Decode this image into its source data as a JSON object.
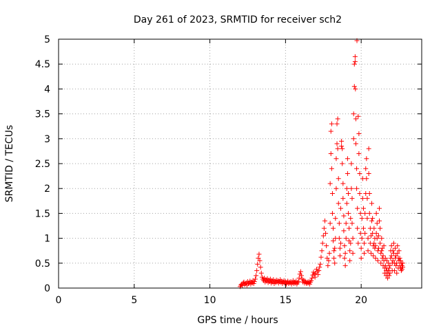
{
  "chart_data": {
    "type": "scatter",
    "title": "Day 261 of 2023, SRMTID for receiver sch2",
    "xlabel": "GPS time / hours",
    "ylabel": "SRMTID / TECUs",
    "xlim": [
      0,
      24
    ],
    "ylim": [
      0,
      5
    ],
    "xticks": [
      0,
      5,
      10,
      15,
      20
    ],
    "xtick_labels": [
      "0",
      "5",
      "10",
      "15",
      "20"
    ],
    "yticks": [
      0,
      0.5,
      1,
      1.5,
      2,
      2.5,
      3,
      3.5,
      4,
      4.5,
      5
    ],
    "ytick_labels": [
      "0",
      "0.5",
      "1",
      "1.5",
      "2",
      "2.5",
      "3",
      "3.5",
      "4",
      "4.5",
      "5"
    ],
    "grid": true,
    "marker": "+",
    "color": "#ff0000",
    "series": [
      {
        "name": "sch2",
        "points": [
          [
            12.0,
            0.03
          ],
          [
            12.05,
            0.06
          ],
          [
            12.1,
            0.08
          ],
          [
            12.15,
            0.05
          ],
          [
            12.2,
            0.1
          ],
          [
            12.25,
            0.12
          ],
          [
            12.3,
            0.07
          ],
          [
            12.35,
            0.09
          ],
          [
            12.4,
            0.11
          ],
          [
            12.45,
            0.06
          ],
          [
            12.5,
            0.13
          ],
          [
            12.55,
            0.09
          ],
          [
            12.6,
            0.1
          ],
          [
            12.65,
            0.14
          ],
          [
            12.7,
            0.08
          ],
          [
            12.75,
            0.12
          ],
          [
            12.8,
            0.1
          ],
          [
            12.85,
            0.15
          ],
          [
            12.9,
            0.09
          ],
          [
            12.95,
            0.13
          ],
          [
            13.0,
            0.18
          ],
          [
            13.05,
            0.25
          ],
          [
            13.1,
            0.35
          ],
          [
            13.15,
            0.48
          ],
          [
            13.2,
            0.6
          ],
          [
            13.25,
            0.68
          ],
          [
            13.3,
            0.55
          ],
          [
            13.35,
            0.42
          ],
          [
            13.4,
            0.3
          ],
          [
            13.45,
            0.22
          ],
          [
            13.5,
            0.18
          ],
          [
            13.55,
            0.15
          ],
          [
            13.6,
            0.2
          ],
          [
            13.65,
            0.12
          ],
          [
            13.7,
            0.17
          ],
          [
            13.75,
            0.14
          ],
          [
            13.8,
            0.19
          ],
          [
            13.85,
            0.11
          ],
          [
            13.9,
            0.16
          ],
          [
            13.95,
            0.13
          ],
          [
            14.0,
            0.18
          ],
          [
            14.05,
            0.1
          ],
          [
            14.1,
            0.15
          ],
          [
            14.15,
            0.12
          ],
          [
            14.2,
            0.17
          ],
          [
            14.25,
            0.09
          ],
          [
            14.3,
            0.14
          ],
          [
            14.35,
            0.11
          ],
          [
            14.4,
            0.16
          ],
          [
            14.45,
            0.12
          ],
          [
            14.5,
            0.15
          ],
          [
            14.55,
            0.1
          ],
          [
            14.6,
            0.13
          ],
          [
            14.65,
            0.17
          ],
          [
            14.7,
            0.11
          ],
          [
            14.75,
            0.14
          ],
          [
            14.8,
            0.09
          ],
          [
            14.85,
            0.12
          ],
          [
            14.9,
            0.15
          ],
          [
            14.95,
            0.1
          ],
          [
            15.0,
            0.13
          ],
          [
            15.05,
            0.08
          ],
          [
            15.1,
            0.11
          ],
          [
            15.15,
            0.14
          ],
          [
            15.2,
            0.09
          ],
          [
            15.25,
            0.12
          ],
          [
            15.3,
            0.1
          ],
          [
            15.35,
            0.13
          ],
          [
            15.4,
            0.08
          ],
          [
            15.45,
            0.11
          ],
          [
            15.5,
            0.15
          ],
          [
            15.55,
            0.09
          ],
          [
            15.6,
            0.12
          ],
          [
            15.65,
            0.1
          ],
          [
            15.7,
            0.14
          ],
          [
            15.75,
            0.08
          ],
          [
            15.8,
            0.11
          ],
          [
            15.85,
            0.13
          ],
          [
            15.9,
            0.2
          ],
          [
            15.95,
            0.28
          ],
          [
            16.0,
            0.33
          ],
          [
            16.05,
            0.25
          ],
          [
            16.1,
            0.18
          ],
          [
            16.15,
            0.12
          ],
          [
            16.2,
            0.16
          ],
          [
            16.25,
            0.1
          ],
          [
            16.3,
            0.14
          ],
          [
            16.35,
            0.11
          ],
          [
            16.4,
            0.09
          ],
          [
            16.45,
            0.12
          ],
          [
            16.5,
            0.1
          ],
          [
            16.55,
            0.13
          ],
          [
            16.6,
            0.08
          ],
          [
            16.65,
            0.12
          ],
          [
            16.7,
            0.15
          ],
          [
            16.75,
            0.2
          ],
          [
            16.8,
            0.26
          ],
          [
            16.85,
            0.32
          ],
          [
            16.9,
            0.28
          ],
          [
            16.95,
            0.22
          ],
          [
            17.0,
            0.3
          ],
          [
            17.05,
            0.38
          ],
          [
            17.1,
            0.34
          ],
          [
            17.15,
            0.27
          ],
          [
            17.2,
            0.35
          ],
          [
            17.25,
            0.42
          ],
          [
            17.3,
            0.48
          ],
          [
            17.35,
            0.62
          ],
          [
            17.4,
            0.75
          ],
          [
            17.45,
            0.9
          ],
          [
            17.5,
            1.05
          ],
          [
            17.55,
            1.2
          ],
          [
            17.6,
            1.35
          ],
          [
            17.65,
            1.1
          ],
          [
            17.7,
            0.85
          ],
          [
            17.75,
            0.6
          ],
          [
            17.8,
            0.45
          ],
          [
            17.85,
            0.55
          ],
          [
            17.9,
            0.7
          ],
          [
            17.95,
            1.3
          ],
          [
            17.95,
            2.1
          ],
          [
            18.0,
            2.7
          ],
          [
            18.0,
            3.15
          ],
          [
            18.05,
            3.3
          ],
          [
            18.05,
            2.4
          ],
          [
            18.1,
            1.9
          ],
          [
            18.1,
            1.5
          ],
          [
            18.15,
            1.2
          ],
          [
            18.15,
            0.95
          ],
          [
            18.2,
            0.75
          ],
          [
            18.2,
            0.6
          ],
          [
            18.25,
            0.5
          ],
          [
            18.25,
            0.8
          ],
          [
            18.3,
            1.0
          ],
          [
            18.3,
            1.4
          ],
          [
            18.35,
            2.0
          ],
          [
            18.35,
            2.6
          ],
          [
            18.4,
            2.9
          ],
          [
            18.4,
            3.3
          ],
          [
            18.45,
            3.4
          ],
          [
            18.45,
            2.8
          ],
          [
            18.5,
            2.2
          ],
          [
            18.5,
            1.7
          ],
          [
            18.55,
            1.3
          ],
          [
            18.55,
            1.0
          ],
          [
            18.6,
            0.8
          ],
          [
            18.6,
            0.65
          ],
          [
            18.65,
            0.9
          ],
          [
            18.65,
            1.6
          ],
          [
            18.7,
            2.85
          ],
          [
            18.7,
            2.95
          ],
          [
            18.75,
            2.8
          ],
          [
            18.75,
            2.5
          ],
          [
            18.8,
            2.1
          ],
          [
            18.8,
            1.8
          ],
          [
            18.85,
            1.45
          ],
          [
            18.85,
            1.15
          ],
          [
            18.9,
            0.85
          ],
          [
            18.9,
            0.6
          ],
          [
            18.95,
            0.45
          ],
          [
            18.95,
            0.7
          ],
          [
            19.0,
            1.0
          ],
          [
            19.0,
            1.3
          ],
          [
            19.05,
            1.7
          ],
          [
            19.05,
            2.0
          ],
          [
            19.1,
            2.3
          ],
          [
            19.1,
            2.6
          ],
          [
            19.15,
            1.9
          ],
          [
            19.15,
            1.5
          ],
          [
            19.2,
            1.2
          ],
          [
            19.2,
            0.95
          ],
          [
            19.25,
            0.75
          ],
          [
            19.25,
            0.55
          ],
          [
            19.3,
            0.9
          ],
          [
            19.3,
            1.4
          ],
          [
            19.35,
            2.0
          ],
          [
            19.35,
            2.5
          ],
          [
            19.4,
            1.8
          ],
          [
            19.4,
            1.3
          ],
          [
            19.45,
            1.0
          ],
          [
            19.45,
            0.7
          ],
          [
            19.5,
            3.0
          ],
          [
            19.5,
            3.5
          ],
          [
            19.55,
            4.05
          ],
          [
            19.55,
            4.5
          ],
          [
            19.6,
            4.65
          ],
          [
            19.6,
            4.55
          ],
          [
            19.62,
            4.0
          ],
          [
            19.65,
            3.4
          ],
          [
            19.65,
            2.9
          ],
          [
            19.7,
            2.4
          ],
          [
            19.7,
            2.0
          ],
          [
            19.72,
            4.97
          ],
          [
            19.75,
            1.6
          ],
          [
            19.75,
            1.2
          ],
          [
            19.8,
            0.9
          ],
          [
            19.8,
            3.45
          ],
          [
            19.85,
            3.1
          ],
          [
            19.85,
            2.7
          ],
          [
            19.9,
            2.3
          ],
          [
            19.9,
            1.9
          ],
          [
            19.95,
            1.5
          ],
          [
            19.95,
            1.1
          ],
          [
            20.0,
            0.8
          ],
          [
            20.0,
            0.6
          ],
          [
            20.05,
            1.0
          ],
          [
            20.05,
            1.4
          ],
          [
            20.1,
            1.8
          ],
          [
            20.1,
            2.2
          ],
          [
            20.15,
            1.6
          ],
          [
            20.15,
            1.2
          ],
          [
            20.2,
            0.9
          ],
          [
            20.2,
            0.7
          ],
          [
            20.25,
            1.1
          ],
          [
            20.25,
            1.5
          ],
          [
            20.3,
            1.9
          ],
          [
            20.3,
            2.4
          ],
          [
            20.35,
            2.6
          ],
          [
            20.35,
            2.2
          ],
          [
            20.4,
            1.8
          ],
          [
            20.4,
            1.4
          ],
          [
            20.45,
            1.0
          ],
          [
            20.45,
            0.75
          ],
          [
            20.5,
            2.8
          ],
          [
            20.5,
            2.3
          ],
          [
            20.55,
            1.9
          ],
          [
            20.55,
            1.5
          ],
          [
            20.6,
            1.2
          ],
          [
            20.6,
            0.9
          ],
          [
            20.65,
            0.7
          ],
          [
            20.65,
            1.05
          ],
          [
            20.7,
            1.35
          ],
          [
            20.7,
            1.7
          ],
          [
            20.75,
            1.4
          ],
          [
            20.75,
            1.1
          ],
          [
            20.8,
            0.85
          ],
          [
            20.8,
            0.65
          ],
          [
            20.85,
            0.9
          ],
          [
            20.85,
            1.2
          ],
          [
            20.9,
            1.0
          ],
          [
            20.9,
            0.8
          ],
          [
            20.95,
            0.6
          ],
          [
            20.95,
            0.85
          ],
          [
            21.0,
            1.1
          ],
          [
            21.0,
            1.5
          ],
          [
            21.05,
            1.3
          ],
          [
            21.05,
            1.0
          ],
          [
            21.1,
            0.75
          ],
          [
            21.1,
            0.55
          ],
          [
            21.15,
            0.8
          ],
          [
            21.15,
            1.05
          ],
          [
            21.2,
            1.35
          ],
          [
            21.2,
            1.6
          ],
          [
            21.25,
            1.2
          ],
          [
            21.25,
            0.9
          ],
          [
            21.3,
            0.7
          ],
          [
            21.3,
            0.5
          ],
          [
            21.35,
            0.75
          ],
          [
            21.35,
            1.0
          ],
          [
            21.4,
            0.8
          ],
          [
            21.4,
            0.6
          ],
          [
            21.45,
            0.45
          ],
          [
            21.45,
            0.65
          ],
          [
            21.5,
            0.85
          ],
          [
            21.5,
            0.55
          ],
          [
            21.55,
            0.4
          ],
          [
            21.55,
            0.3
          ],
          [
            21.6,
            0.45
          ],
          [
            21.6,
            0.6
          ],
          [
            21.65,
            0.35
          ],
          [
            21.65,
            0.25
          ],
          [
            21.7,
            0.4
          ],
          [
            21.7,
            0.55
          ],
          [
            21.75,
            0.3
          ],
          [
            21.75,
            0.2
          ],
          [
            21.8,
            0.35
          ],
          [
            21.8,
            0.5
          ],
          [
            21.85,
            0.25
          ],
          [
            21.85,
            0.4
          ],
          [
            21.9,
            0.3
          ],
          [
            21.9,
            0.45
          ],
          [
            21.95,
            0.6
          ],
          [
            21.95,
            0.75
          ],
          [
            22.0,
            0.85
          ],
          [
            22.0,
            0.65
          ],
          [
            22.05,
            0.5
          ],
          [
            22.05,
            0.35
          ],
          [
            22.1,
            0.55
          ],
          [
            22.1,
            0.75
          ],
          [
            22.15,
            0.9
          ],
          [
            22.15,
            0.7
          ],
          [
            22.2,
            0.5
          ],
          [
            22.2,
            0.35
          ],
          [
            22.25,
            0.6
          ],
          [
            22.25,
            0.8
          ],
          [
            22.3,
            0.65
          ],
          [
            22.3,
            0.45
          ],
          [
            22.35,
            0.3
          ],
          [
            22.35,
            0.5
          ],
          [
            22.4,
            0.7
          ],
          [
            22.4,
            0.85
          ],
          [
            22.45,
            0.6
          ],
          [
            22.45,
            0.4
          ],
          [
            22.5,
            0.55
          ],
          [
            22.5,
            0.75
          ],
          [
            22.55,
            0.45
          ],
          [
            22.55,
            0.6
          ],
          [
            22.6,
            0.4
          ],
          [
            22.6,
            0.55
          ],
          [
            22.65,
            0.35
          ],
          [
            22.65,
            0.5
          ],
          [
            22.7,
            0.45
          ],
          [
            22.7,
            0.38
          ],
          [
            22.75,
            0.5
          ],
          [
            22.75,
            0.42
          ]
        ]
      }
    ]
  }
}
